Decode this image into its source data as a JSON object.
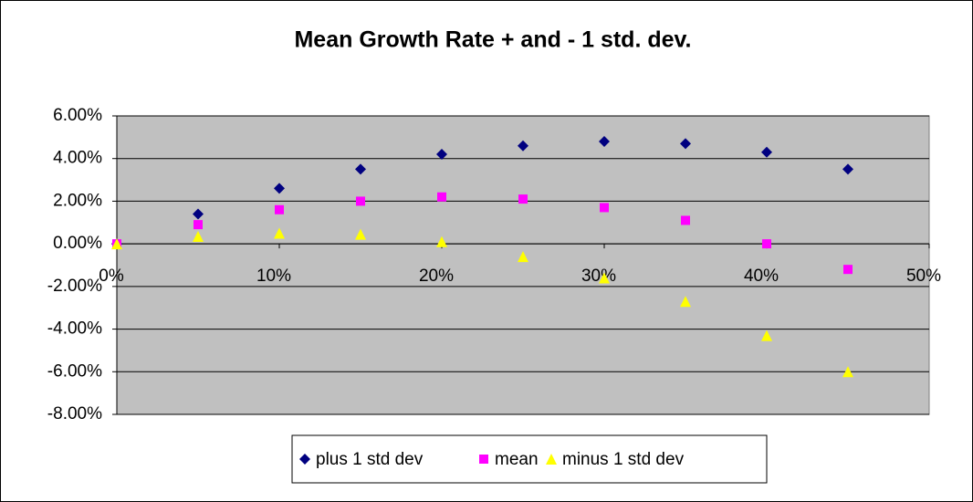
{
  "chart_data": {
    "type": "scatter",
    "title": "Mean Growth Rate + and - 1 std. dev.",
    "x": [
      0,
      5,
      10,
      15,
      20,
      25,
      30,
      35,
      40,
      45
    ],
    "series": [
      {
        "name": "plus 1 std dev",
        "color": "#000080",
        "marker": "diamond",
        "values": [
          0,
          1.4,
          2.6,
          3.5,
          4.2,
          4.6,
          4.8,
          4.7,
          4.3,
          3.5
        ]
      },
      {
        "name": "mean",
        "color": "#ff00ff",
        "marker": "square",
        "values": [
          0,
          0.9,
          1.6,
          2.0,
          2.2,
          2.1,
          1.7,
          1.1,
          0.0,
          -1.2
        ]
      },
      {
        "name": "minus 1 std dev",
        "color": "#ffff00",
        "marker": "triangle",
        "values": [
          0,
          0.35,
          0.5,
          0.45,
          0.1,
          -0.6,
          -1.6,
          -2.7,
          -4.3,
          -6.0
        ]
      }
    ],
    "xlim": [
      0,
      50
    ],
    "xticks": [
      {
        "value": 0,
        "label": "0%"
      },
      {
        "value": 10,
        "label": "10%"
      },
      {
        "value": 20,
        "label": "20%"
      },
      {
        "value": 30,
        "label": "30%"
      },
      {
        "value": 40,
        "label": "40%"
      },
      {
        "value": 50,
        "label": "50%"
      }
    ],
    "ylim": [
      -8,
      6
    ],
    "yticks": [
      {
        "value": -8,
        "label": "-8.00%"
      },
      {
        "value": -6,
        "label": "-6.00%"
      },
      {
        "value": -4,
        "label": "-4.00%"
      },
      {
        "value": -2,
        "label": "-2.00%"
      },
      {
        "value": 0,
        "label": "0.00%"
      },
      {
        "value": 2,
        "label": "2.00%"
      },
      {
        "value": 4,
        "label": "4.00%"
      },
      {
        "value": 6,
        "label": "6.00%"
      }
    ],
    "grid": true,
    "legend": "bottom"
  }
}
